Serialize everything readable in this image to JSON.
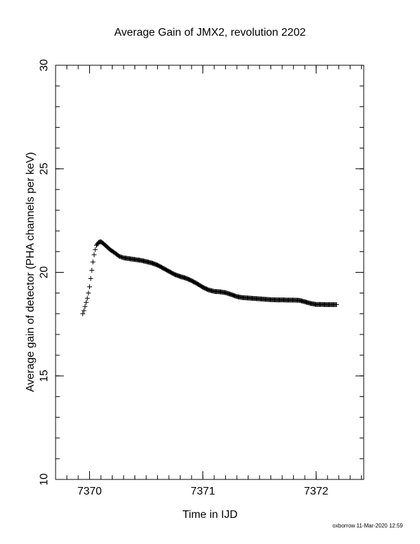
{
  "chart_data": {
    "type": "scatter",
    "title": "Average Gain of JMX2, revolution 2202",
    "xlabel": "Time in IJD",
    "ylabel": "Average gain of detector (PHA channels per keV)",
    "xlim": [
      7369.7,
      7372.42
    ],
    "ylim": [
      10,
      30
    ],
    "xticks": [
      7370,
      7371,
      7372
    ],
    "yticks": [
      10,
      15,
      20,
      25,
      30
    ],
    "marker": "plus",
    "color": "#000000",
    "points": [
      [
        7369.94,
        18.0
      ],
      [
        7369.95,
        18.15
      ],
      [
        7369.96,
        18.35
      ],
      [
        7369.97,
        18.55
      ],
      [
        7369.98,
        18.75
      ],
      [
        7369.99,
        19.0
      ],
      [
        7370.0,
        19.3
      ],
      [
        7370.01,
        19.7
      ],
      [
        7370.02,
        20.1
      ],
      [
        7370.03,
        20.5
      ],
      [
        7370.04,
        20.85
      ],
      [
        7370.05,
        21.1
      ],
      [
        7370.06,
        21.3
      ],
      [
        7370.08,
        21.45
      ],
      [
        7370.1,
        21.48
      ],
      [
        7370.12,
        21.4
      ],
      [
        7370.15,
        21.25
      ],
      [
        7370.18,
        21.1
      ],
      [
        7370.22,
        20.95
      ],
      [
        7370.26,
        20.78
      ],
      [
        7370.3,
        20.7
      ],
      [
        7370.35,
        20.66
      ],
      [
        7370.4,
        20.62
      ],
      [
        7370.45,
        20.58
      ],
      [
        7370.5,
        20.52
      ],
      [
        7370.55,
        20.45
      ],
      [
        7370.6,
        20.35
      ],
      [
        7370.65,
        20.2
      ],
      [
        7370.7,
        20.05
      ],
      [
        7370.75,
        19.9
      ],
      [
        7370.8,
        19.8
      ],
      [
        7370.85,
        19.72
      ],
      [
        7370.9,
        19.6
      ],
      [
        7370.95,
        19.45
      ],
      [
        7371.0,
        19.28
      ],
      [
        7371.05,
        19.15
      ],
      [
        7371.1,
        19.08
      ],
      [
        7371.15,
        19.06
      ],
      [
        7371.2,
        19.02
      ],
      [
        7371.25,
        18.93
      ],
      [
        7371.3,
        18.83
      ],
      [
        7371.35,
        18.78
      ],
      [
        7371.4,
        18.76
      ],
      [
        7371.45,
        18.74
      ],
      [
        7371.5,
        18.72
      ],
      [
        7371.55,
        18.7
      ],
      [
        7371.6,
        18.68
      ],
      [
        7371.65,
        18.67
      ],
      [
        7371.7,
        18.67
      ],
      [
        7371.75,
        18.66
      ],
      [
        7371.8,
        18.66
      ],
      [
        7371.85,
        18.65
      ],
      [
        7371.9,
        18.58
      ],
      [
        7371.95,
        18.5
      ],
      [
        7372.0,
        18.45
      ],
      [
        7372.05,
        18.45
      ],
      [
        7372.1,
        18.44
      ],
      [
        7372.15,
        18.44
      ],
      [
        7372.18,
        18.44
      ]
    ]
  },
  "footer": {
    "stamp": "oxborrow 11-Mar-2020 12:59"
  }
}
